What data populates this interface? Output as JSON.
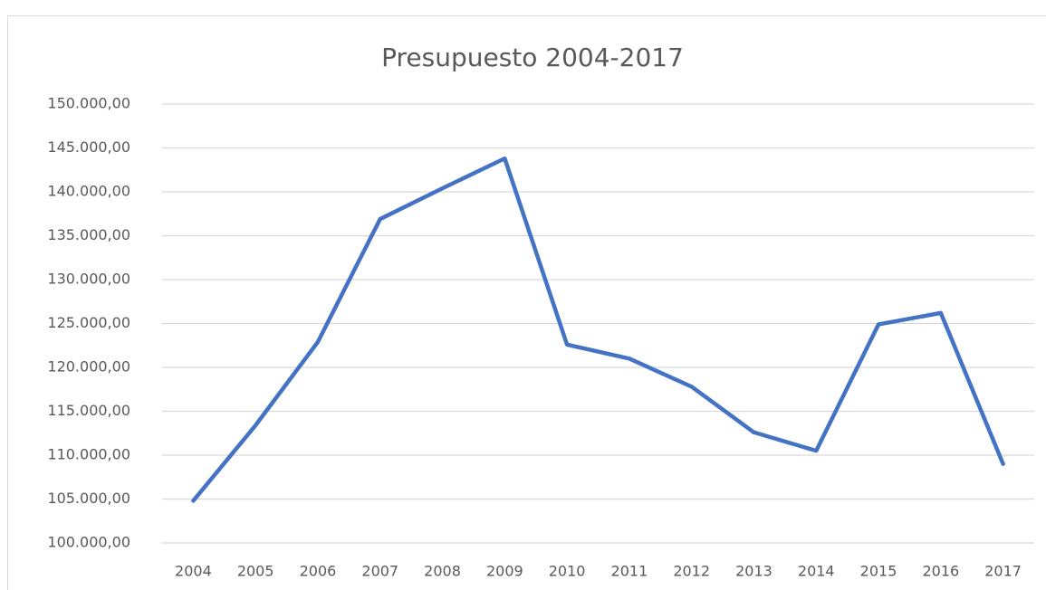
{
  "chart_data": {
    "type": "line",
    "title": "Presupuesto 2004-2017",
    "categories": [
      "2004",
      "2005",
      "2006",
      "2007",
      "2008",
      "2009",
      "2010",
      "2011",
      "2012",
      "2013",
      "2014",
      "2015",
      "2016",
      "2017"
    ],
    "series": [
      {
        "color": "#4472c4",
        "values": [
          104800,
          113400,
          122900,
          136900,
          140400,
          143800,
          122600,
          121000,
          117800,
          112600,
          110500,
          124900,
          126200,
          109000
        ]
      }
    ],
    "ylim": [
      100000,
      150000
    ],
    "yticks": [
      {
        "value": 100000,
        "label": "100.000,00"
      },
      {
        "value": 105000,
        "label": "105.000,00"
      },
      {
        "value": 110000,
        "label": "110.000,00"
      },
      {
        "value": 115000,
        "label": "115.000,00"
      },
      {
        "value": 120000,
        "label": "120.000,00"
      },
      {
        "value": 125000,
        "label": "125.000,00"
      },
      {
        "value": 130000,
        "label": "130.000,00"
      },
      {
        "value": 135000,
        "label": "135.000,00"
      },
      {
        "value": 140000,
        "label": "140.000,00"
      },
      {
        "value": 145000,
        "label": "145.000,00"
      },
      {
        "value": 150000,
        "label": "150.000,00"
      }
    ],
    "grid": true
  }
}
